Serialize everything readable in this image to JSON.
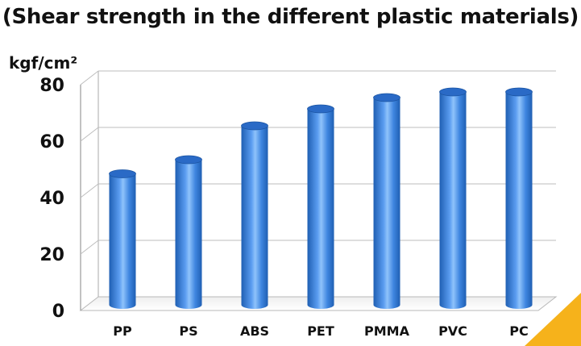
{
  "chart_data": {
    "type": "bar",
    "title": "(Shear strength in the different plastic materials)",
    "ylabel": "kgf/cm²",
    "xlabel": "",
    "categories": [
      "PP",
      "PS",
      "ABS",
      "PET",
      "PMMA",
      "PVC",
      "PC"
    ],
    "values": [
      43,
      48,
      60,
      66,
      70,
      72,
      72
    ],
    "ylim": [
      0,
      80
    ],
    "yticks": [
      "0",
      "20",
      "40",
      "60",
      "80"
    ],
    "grid": true,
    "legend": "none",
    "style": "3d-cylinder"
  },
  "colors": {
    "bar_dark": "#1f5fb3",
    "bar_mid": "#3f86e0",
    "bar_light": "#8fc3fb",
    "bar_top": "#2a6ac6",
    "grid": "#b8b8b8",
    "wall": "#ffffff",
    "corner_accent": "#f6b21b"
  }
}
